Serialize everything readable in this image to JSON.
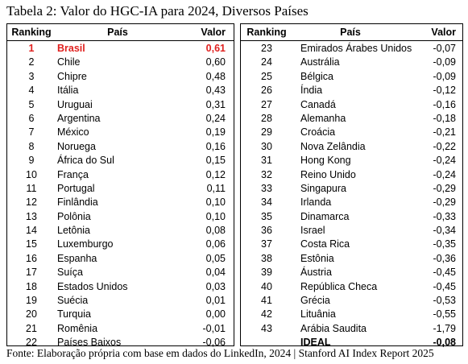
{
  "caption": "Tabela 2: Valor do HGC-IA para 2024, Diversos Países",
  "footnote": "Fonte: Elaboração própria com base em dados do LinkedIn, 2024 | Stanford AI Index Report 2025",
  "columns": {
    "rank": "Ranking",
    "country": "País",
    "value": "Valor"
  },
  "colors": {
    "highlight": "#e0211f"
  },
  "left_rows": [
    {
      "rank": "1",
      "country": "Brasil",
      "value": "0,61",
      "highlight": true
    },
    {
      "rank": "2",
      "country": "Chile",
      "value": "0,60"
    },
    {
      "rank": "3",
      "country": "Chipre",
      "value": "0,48"
    },
    {
      "rank": "4",
      "country": "Itália",
      "value": "0,43"
    },
    {
      "rank": "5",
      "country": "Uruguai",
      "value": "0,31"
    },
    {
      "rank": "6",
      "country": "Argentina",
      "value": "0,24"
    },
    {
      "rank": "7",
      "country": "México",
      "value": "0,19"
    },
    {
      "rank": "8",
      "country": "Noruega",
      "value": "0,16"
    },
    {
      "rank": "9",
      "country": "África do Sul",
      "value": "0,15"
    },
    {
      "rank": "10",
      "country": "França",
      "value": "0,12"
    },
    {
      "rank": "11",
      "country": "Portugal",
      "value": "0,11"
    },
    {
      "rank": "12",
      "country": "Finlândia",
      "value": "0,10"
    },
    {
      "rank": "13",
      "country": "Polônia",
      "value": "0,10"
    },
    {
      "rank": "14",
      "country": "Letônia",
      "value": "0,08"
    },
    {
      "rank": "15",
      "country": "Luxemburgo",
      "value": "0,06"
    },
    {
      "rank": "16",
      "country": "Espanha",
      "value": "0,05"
    },
    {
      "rank": "17",
      "country": "Suíça",
      "value": "0,04"
    },
    {
      "rank": "18",
      "country": "Estados Unidos",
      "value": "0,03"
    },
    {
      "rank": "19",
      "country": "Suécia",
      "value": "0,01"
    },
    {
      "rank": "20",
      "country": "Turquia",
      "value": "0,00"
    },
    {
      "rank": "21",
      "country": "Romênia",
      "value": "-0,01"
    },
    {
      "rank": "22",
      "country": "Países Baixos",
      "value": "-0,06"
    }
  ],
  "right_rows": [
    {
      "rank": "23",
      "country": "Emirados Árabes Unidos",
      "value": "-0,07"
    },
    {
      "rank": "24",
      "country": "Austrália",
      "value": "-0,09"
    },
    {
      "rank": "25",
      "country": "Bélgica",
      "value": "-0,09"
    },
    {
      "rank": "26",
      "country": "Índia",
      "value": "-0,12"
    },
    {
      "rank": "27",
      "country": "Canadá",
      "value": "-0,16"
    },
    {
      "rank": "28",
      "country": "Alemanha",
      "value": "-0,18"
    },
    {
      "rank": "29",
      "country": "Croácia",
      "value": "-0,21"
    },
    {
      "rank": "30",
      "country": "Nova Zelândia",
      "value": "-0,22"
    },
    {
      "rank": "31",
      "country": "Hong Kong",
      "value": "-0,24"
    },
    {
      "rank": "32",
      "country": "Reino Unido",
      "value": "-0,24"
    },
    {
      "rank": "33",
      "country": "Singapura",
      "value": "-0,29"
    },
    {
      "rank": "34",
      "country": "Irlanda",
      "value": "-0,29"
    },
    {
      "rank": "35",
      "country": "Dinamarca",
      "value": "-0,33"
    },
    {
      "rank": "36",
      "country": "Israel",
      "value": "-0,34"
    },
    {
      "rank": "37",
      "country": "Costa Rica",
      "value": "-0,35"
    },
    {
      "rank": "38",
      "country": "Estônia",
      "value": "-0,36"
    },
    {
      "rank": "39",
      "country": "Áustria",
      "value": "-0,45"
    },
    {
      "rank": "40",
      "country": "República Checa",
      "value": "-0,45"
    },
    {
      "rank": "41",
      "country": "Grécia",
      "value": "-0,53"
    },
    {
      "rank": "42",
      "country": "Lituânia",
      "value": "-0,55"
    },
    {
      "rank": "43",
      "country": "Arábia Saudita",
      "value": "-1,79"
    },
    {
      "rank": "",
      "country": "IDEAL",
      "value": "-0,08",
      "bold": true
    }
  ]
}
